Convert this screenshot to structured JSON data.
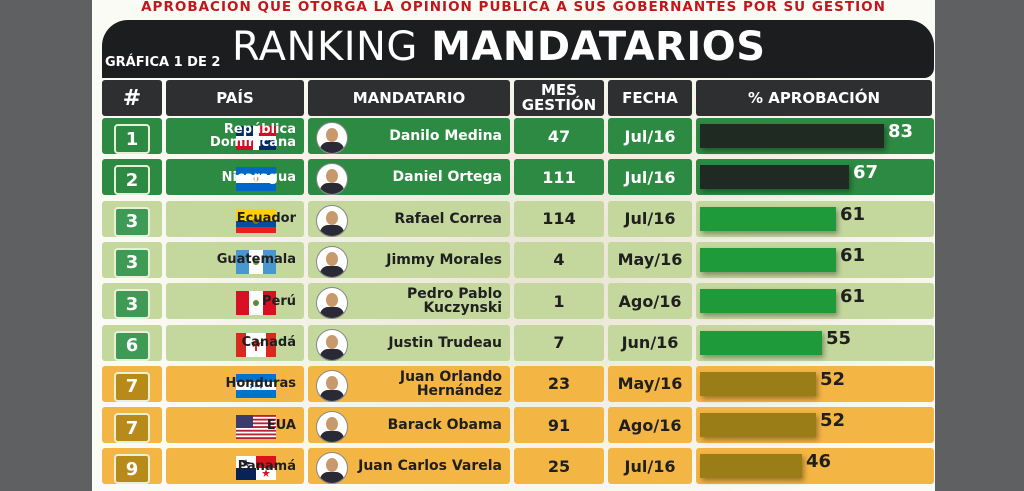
{
  "subtitle": "APROBACIÓN QUE OTORGA LA OPINIÓN PÚBLICA A SUS GOBERNANTES POR SU GESTIÓN",
  "title_part1": "RANKING",
  "title_part2": "MANDATARIOS",
  "grafica_label": "GRÁFICA 1 DE 2",
  "colors": {
    "green_dark": "#2d8a43",
    "green_light": "#c4d89d",
    "orange": "#f3b544",
    "bar_dark": "#1f2a22",
    "bar_green": "#1e9a3a",
    "bar_olive": "#9a7d16"
  },
  "chart_data": {
    "type": "table",
    "title": "RANKING MANDATARIOS",
    "columns": [
      "#",
      "PAÍS",
      "MANDATARIO",
      "MES GESTIÓN",
      "FECHA",
      "% APROBACIÓN"
    ],
    "rows": [
      {
        "rank": "1",
        "country": "República Dominicana",
        "flag": "dominican-republic",
        "leader": "Danilo Medina",
        "months": "47",
        "date": "Jul/16",
        "approval": 83,
        "approval_label": "83",
        "tier": "top"
      },
      {
        "rank": "2",
        "country": "Nicaragua",
        "flag": "nicaragua",
        "leader": "Daniel Ortega",
        "months": "111",
        "date": "Jul/16",
        "approval": 67,
        "approval_label": "67",
        "tier": "top"
      },
      {
        "rank": "3",
        "country": "Ecuador",
        "flag": "ecuador",
        "leader": "Rafael Correa",
        "months": "114",
        "date": "Jul/16",
        "approval": 61,
        "approval_label": "61",
        "tier": "mid"
      },
      {
        "rank": "3",
        "country": "Guatemala",
        "flag": "guatemala",
        "leader": "Jimmy Morales",
        "months": "4",
        "date": "May/16",
        "approval": 61,
        "approval_label": "61",
        "tier": "mid"
      },
      {
        "rank": "3",
        "country": "Perú",
        "flag": "peru",
        "leader": "Pedro Pablo Kuczynski",
        "months": "1",
        "date": "Ago/16",
        "approval": 61,
        "approval_label": "61",
        "tier": "mid"
      },
      {
        "rank": "6",
        "country": "Canadá",
        "flag": "canada",
        "leader": "Justin Trudeau",
        "months": "7",
        "date": "Jun/16",
        "approval": 55,
        "approval_label": "55",
        "tier": "mid"
      },
      {
        "rank": "7",
        "country": "Honduras",
        "flag": "honduras",
        "leader": "Juan Orlando Hernández",
        "months": "23",
        "date": "May/16",
        "approval": 52,
        "approval_label": "52",
        "tier": "low"
      },
      {
        "rank": "7",
        "country": "EUA",
        "flag": "usa",
        "leader": "Barack Obama",
        "months": "91",
        "date": "Ago/16",
        "approval": 52,
        "approval_label": "52",
        "tier": "low"
      },
      {
        "rank": "9",
        "country": "Panamá",
        "flag": "panama",
        "leader": "Juan Carlos Varela",
        "months": "25",
        "date": "Jul/16",
        "approval": 46,
        "approval_label": "46",
        "tier": "low"
      }
    ]
  }
}
